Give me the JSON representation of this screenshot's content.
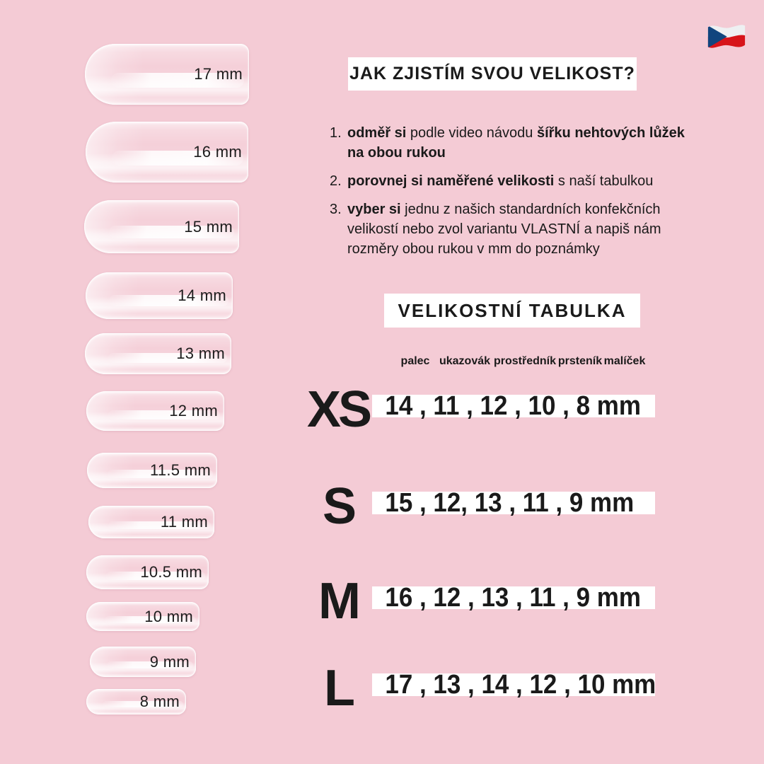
{
  "colors": {
    "background": "#f4cbd5",
    "panel": "#ffffff",
    "text": "#1a1a1a",
    "flag_red": "#d7141a",
    "flag_blue": "#11457e",
    "flag_white": "#eef0f2"
  },
  "flag": {
    "country": "Czech Republic"
  },
  "nail_sizes": [
    {
      "label": "17 mm"
    },
    {
      "label": "16 mm"
    },
    {
      "label": "15 mm"
    },
    {
      "label": "14 mm"
    },
    {
      "label": "13 mm"
    },
    {
      "label": "12 mm"
    },
    {
      "label": "11.5 mm"
    },
    {
      "label": "11 mm"
    },
    {
      "label": "10.5 mm"
    },
    {
      "label": "10 mm"
    },
    {
      "label": "9 mm"
    },
    {
      "label": "8 mm"
    }
  ],
  "howto": {
    "title": "JAK ZJISTÍM SVOU VELIKOST?",
    "steps": [
      {
        "number": "1.",
        "runs": [
          {
            "text": "odměř si ",
            "bold": true
          },
          {
            "text": "podle video návodu ",
            "bold": false
          },
          {
            "text": "šířku nehtových lůžek",
            "bold": true,
            "break_after": true
          },
          {
            "text": "na obou rukou",
            "bold": true
          }
        ]
      },
      {
        "number": "2.",
        "runs": [
          {
            "text": "porovnej si naměřené velikosti ",
            "bold": true
          },
          {
            "text": "s naší tabulkou",
            "bold": false
          }
        ]
      },
      {
        "number": "3.",
        "runs": [
          {
            "text": "vyber si ",
            "bold": true
          },
          {
            "text": "jednu z našich standardních konfekčních",
            "bold": false,
            "break_after": true
          },
          {
            "text": "velikostí nebo zvol variantu VLASTNÍ a napiš nám",
            "bold": false,
            "break_after": true
          },
          {
            "text": "rozměry obou rukou v mm do poznámky",
            "bold": false
          }
        ]
      }
    ]
  },
  "size_table": {
    "title": "VELIKOSTNÍ TABULKA",
    "finger_columns": [
      "palec",
      "ukazovák",
      "prostředník",
      "prsteník",
      "malíček"
    ],
    "rows": [
      {
        "size": "XS",
        "widths_mm": "14 , 11 , 12 , 10 , 8 mm"
      },
      {
        "size": "S",
        "widths_mm": "15 , 12, 13 , 11 , 9 mm"
      },
      {
        "size": "M",
        "widths_mm": "16 , 12 , 13 , 11 , 9 mm"
      },
      {
        "size": "L",
        "widths_mm": "17 , 13 , 14 , 12 , 10 mm"
      }
    ]
  }
}
